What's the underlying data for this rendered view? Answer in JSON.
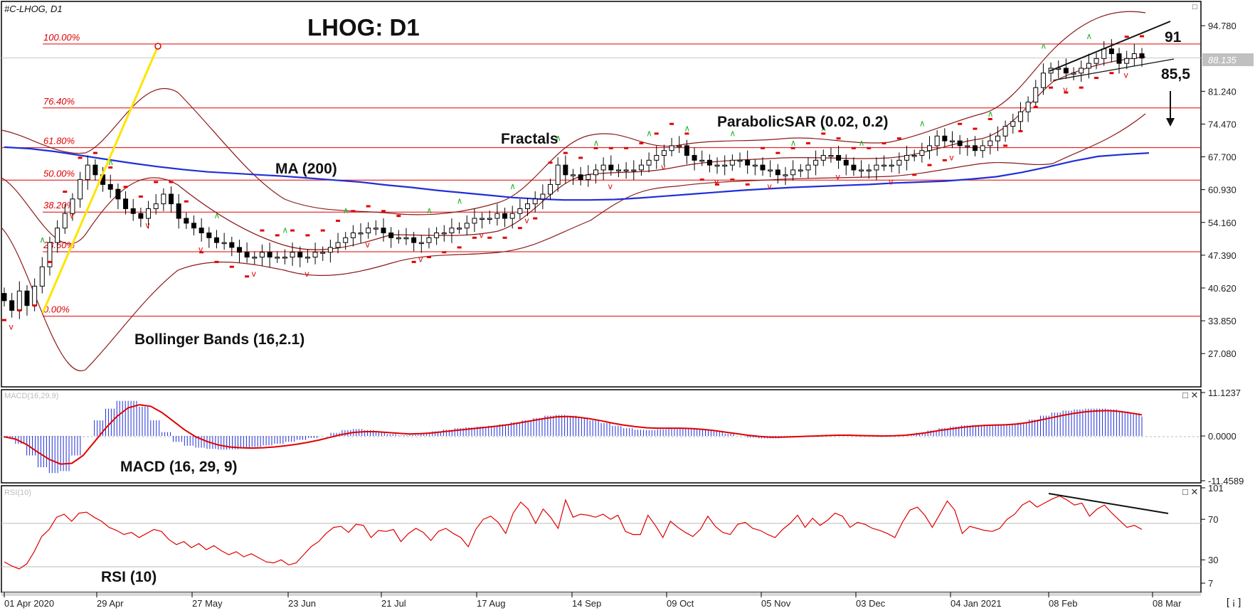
{
  "header": {
    "symbol": "#C-LHOG, D1",
    "title": "LHOG: D1"
  },
  "chart_data": {
    "type": "candlestick",
    "symbol": "#C-LHOG",
    "timeframe": "D1",
    "x_ticks": [
      "01 Apr 2020",
      "29 Apr",
      "27 May",
      "23 Jun",
      "21 Jul",
      "17 Aug",
      "14 Sep",
      "09 Oct",
      "05 Nov",
      "03 Dec",
      "04 Jan 2021",
      "08 Feb",
      "08 Mar"
    ],
    "main_panel": {
      "y_ticks": [
        "94.780",
        "81.240",
        "74.470",
        "67.700",
        "60.930",
        "54.160",
        "47.390",
        "40.620",
        "33.850",
        "27.080"
      ],
      "y_tick_values": [
        94.78,
        81.24,
        74.47,
        67.7,
        60.93,
        54.16,
        47.39,
        40.62,
        33.85,
        27.08
      ],
      "ylim": [
        20.5,
        99.5
      ],
      "last_price": "88.135",
      "fibonacci_levels": [
        {
          "label": "100.00%",
          "value": 91.0
        },
        {
          "label": "76.40%",
          "value": 77.8
        },
        {
          "label": "61.80%",
          "value": 69.6
        },
        {
          "label": "50.00%",
          "value": 62.9
        },
        {
          "label": "38.20%",
          "value": 56.3
        },
        {
          "label": "23.60%",
          "value": 48.1
        },
        {
          "label": "0.00%",
          "value": 34.8
        }
      ],
      "close_series": [
        38,
        36,
        40,
        37,
        41,
        45,
        50,
        53,
        56,
        59,
        63,
        66,
        64,
        62,
        61,
        59,
        57,
        56,
        55,
        57,
        58,
        60,
        58,
        55,
        54,
        53,
        52,
        51,
        50,
        50,
        49,
        48,
        47,
        47,
        48,
        47,
        47,
        47,
        48,
        47,
        47,
        48,
        48,
        49,
        50,
        51,
        52,
        52,
        53,
        53,
        52,
        51,
        51,
        51,
        50,
        50,
        51,
        52,
        52,
        53,
        53,
        54,
        55,
        55,
        55,
        56,
        55,
        56,
        57,
        58,
        59,
        60,
        62,
        66,
        64,
        64,
        63,
        64,
        65,
        66,
        65,
        65,
        65,
        65,
        66,
        67,
        68,
        69,
        70,
        70,
        68,
        67,
        67,
        66,
        66,
        66,
        67,
        67,
        66,
        66,
        65,
        65,
        64,
        64,
        65,
        65,
        66,
        67,
        68,
        68,
        67,
        66,
        65,
        65,
        65,
        66,
        66,
        66,
        67,
        68,
        68,
        69,
        70,
        72,
        71,
        71,
        70,
        70,
        69,
        70,
        71,
        72,
        74,
        75,
        77,
        79,
        82,
        85,
        86,
        86,
        85,
        85,
        86,
        87,
        88,
        90,
        89,
        87,
        88,
        89,
        88.1
      ],
      "ma200_series": [
        69.7,
        69.4,
        68.8,
        68.0,
        67.2,
        66.4,
        65.7,
        65.1,
        64.6,
        64.3,
        64.0,
        63.7,
        63.3,
        62.9,
        62.5,
        61.9,
        61.4,
        60.8,
        60.3,
        59.8,
        59.3,
        59.0,
        58.8,
        58.8,
        58.9,
        59.2,
        59.6,
        60.0,
        60.4,
        60.8,
        61.1,
        61.4,
        61.6,
        61.8,
        62.0,
        62.3,
        62.5,
        62.7,
        63.1,
        63.6,
        64.5,
        65.6,
        66.8,
        67.8,
        68.2,
        68.5
      ],
      "indicators": [
        "MA (200)",
        "Bollinger Bands (16,2.1)",
        "Fractals",
        "ParabolicSAR (0.02, 0.2)"
      ],
      "annotations": {
        "target_up": "91",
        "target_down": "85,5"
      }
    },
    "macd_panel": {
      "label": "MACD (16, 29, 9)",
      "header": "MACD(16,29,9)",
      "y_ticks": [
        "11.1237",
        "0.0000",
        "-11.4589"
      ],
      "ylim": [
        -11.4589,
        11.1237
      ],
      "histogram": [
        -0.5,
        -2,
        -5,
        -8,
        -9.5,
        -9,
        -5,
        0,
        4,
        7,
        9,
        9,
        7.5,
        4,
        1,
        -1.5,
        -2.5,
        -3,
        -3.3,
        -3.5,
        -3.4,
        -3.2,
        -2.8,
        -2.4,
        -2,
        -1.5,
        -1,
        -0.5,
        0,
        0.8,
        1.5,
        1.8,
        1.5,
        1,
        0.5,
        0.2,
        0.3,
        0.8,
        1.2,
        1.6,
        2,
        2.2,
        2.4,
        2.6,
        3,
        3.5,
        4,
        4.6,
        5.2,
        5.4,
        5.2,
        4.7,
        4,
        3.3,
        2.6,
        2,
        1.6,
        1.5,
        1.7,
        1.9,
        2.0,
        1.9,
        1.6,
        1.2,
        0.6,
        0,
        -0.4,
        -0.6,
        -0.6,
        -0.4,
        -0.2,
        0,
        0.1,
        0.2,
        0.3,
        0.2,
        0.1,
        -0.1,
        -0.1,
        0,
        0.3,
        0.8,
        1.4,
        2,
        2.4,
        2.7,
        2.8,
        2.9,
        3,
        3.1,
        3.4,
        4.2,
        5.2,
        6,
        6.5,
        6.8,
        7,
        7,
        6.8,
        6.3,
        5.8,
        5
      ],
      "signal": [
        -0.2,
        -0.8,
        -2.2,
        -4.2,
        -6,
        -7.2,
        -7,
        -5,
        -1.5,
        2,
        5,
        7.2,
        8,
        7.6,
        6,
        3.8,
        1.6,
        -0.2,
        -1.4,
        -2.3,
        -2.8,
        -3,
        -3.1,
        -3,
        -2.8,
        -2.5,
        -2.1,
        -1.6,
        -1,
        -0.3,
        0.4,
        0.9,
        1.1,
        1.1,
        0.9,
        0.7,
        0.5,
        0.6,
        0.8,
        1.1,
        1.4,
        1.7,
        2,
        2.3,
        2.6,
        3,
        3.5,
        4,
        4.5,
        4.9,
        5.0,
        4.8,
        4.4,
        3.9,
        3.3,
        2.8,
        2.4,
        2.1,
        2.0,
        2.0,
        2.0,
        1.9,
        1.7,
        1.4,
        1,
        0.6,
        0.2,
        -0.1,
        -0.3,
        -0.3,
        -0.2,
        -0.1,
        0,
        0.1,
        0.2,
        0.2,
        0.1,
        0.05,
        0,
        0.05,
        0.2,
        0.5,
        0.9,
        1.4,
        1.8,
        2.2,
        2.5,
        2.7,
        2.8,
        2.9,
        3.1,
        3.5,
        4.1,
        4.7,
        5.3,
        5.8,
        6.2,
        6.4,
        6.5,
        6.3,
        5.9,
        5.4
      ]
    },
    "rsi_panel": {
      "label": "RSI (10)",
      "header": "RSI(10)",
      "y_ticks": [
        "101",
        "70",
        "30",
        "7"
      ],
      "ylim": [
        0,
        101
      ],
      "levels": [
        70,
        30
      ],
      "series": [
        28,
        24,
        21,
        26,
        38,
        53,
        60,
        72,
        75,
        68,
        76,
        77,
        72,
        68,
        62,
        59,
        55,
        57,
        52,
        56,
        60,
        58,
        50,
        45,
        48,
        42,
        46,
        40,
        44,
        39,
        35,
        38,
        33,
        36,
        32,
        28,
        27,
        30,
        25,
        27,
        35,
        43,
        48,
        56,
        62,
        63,
        57,
        65,
        64,
        52,
        59,
        58,
        60,
        48,
        56,
        61,
        57,
        49,
        58,
        61,
        56,
        52,
        43,
        60,
        70,
        73,
        67,
        56,
        76,
        87,
        80,
        66,
        80,
        72,
        61,
        89,
        72,
        75,
        74,
        72,
        75,
        70,
        74,
        58,
        55,
        55,
        74,
        64,
        52,
        68,
        62,
        57,
        53,
        60,
        73,
        63,
        57,
        55,
        65,
        67,
        61,
        59,
        55,
        52,
        60,
        66,
        74,
        62,
        71,
        64,
        69,
        76,
        73,
        62,
        67,
        65,
        61,
        59,
        56,
        52,
        67,
        79,
        82,
        74,
        62,
        75,
        88,
        79,
        56,
        63,
        61,
        59,
        58,
        61,
        70,
        75,
        84,
        88,
        82,
        86,
        90,
        93,
        89,
        84,
        86,
        73,
        80,
        84,
        76,
        69,
        62,
        64,
        60
      ]
    }
  }
}
